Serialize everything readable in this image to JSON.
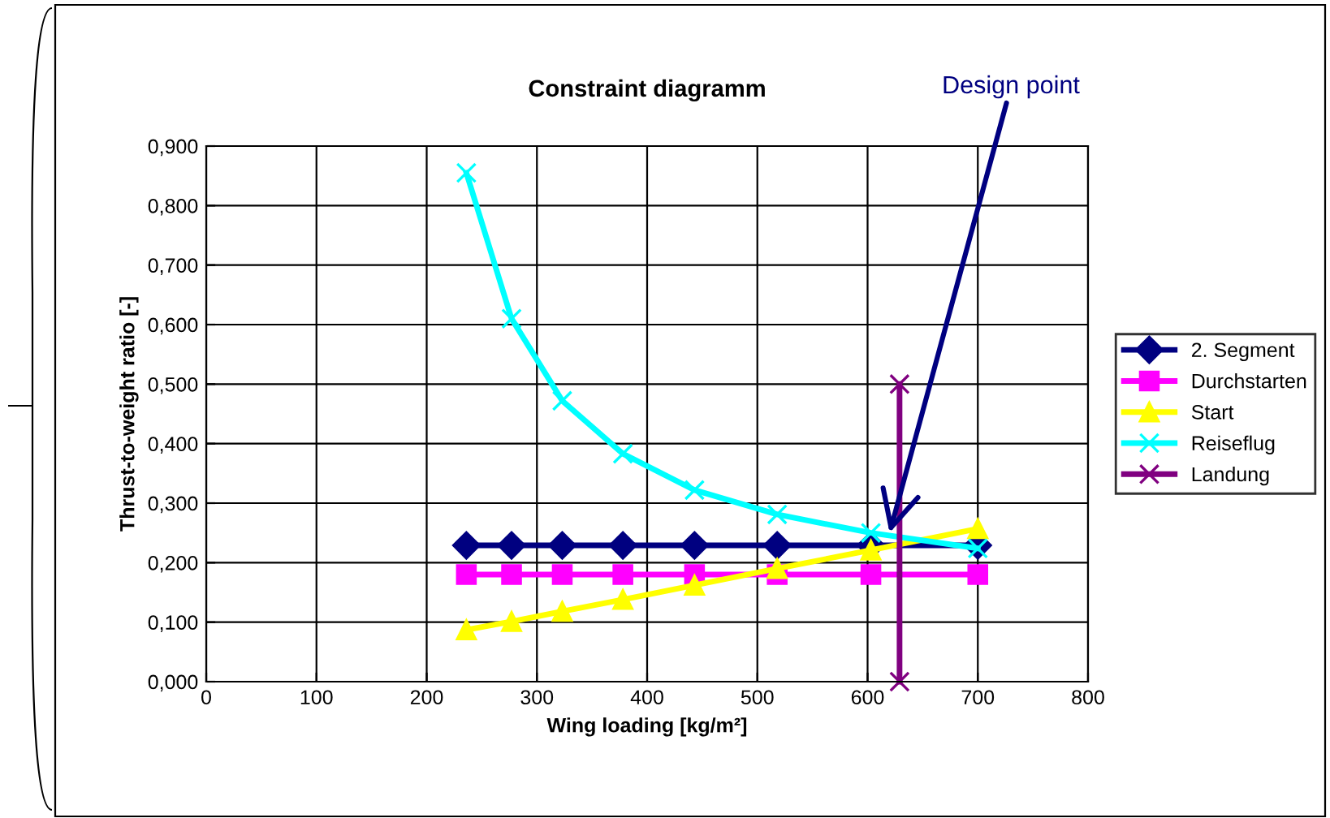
{
  "chart_data": {
    "type": "line",
    "title": "Constraint diagramm",
    "xlabel": "Wing loading [kg/m²]",
    "ylabel": "Thrust-to-weight ratio [-]",
    "x": [
      236,
      277,
      323,
      378,
      443,
      518,
      603,
      700
    ],
    "series": [
      {
        "name": "2. Segment",
        "color": "#000080",
        "marker": "diamond",
        "values": [
          0.229,
          0.229,
          0.229,
          0.229,
          0.229,
          0.229,
          0.229,
          0.229
        ]
      },
      {
        "name": "Durchstarten",
        "color": "#ff00ff",
        "marker": "square",
        "values": [
          0.18,
          0.18,
          0.18,
          0.18,
          0.18,
          0.18,
          0.18,
          0.18
        ]
      },
      {
        "name": "Start",
        "color": "#ffff00",
        "marker": "triangle",
        "values": [
          0.087,
          0.101,
          0.118,
          0.138,
          0.162,
          0.19,
          0.221,
          0.257
        ]
      },
      {
        "name": "Reiseflug",
        "color": "#00ffff",
        "marker": "cross",
        "values": [
          0.855,
          0.61,
          0.472,
          0.383,
          0.322,
          0.281,
          0.25,
          0.224
        ]
      },
      {
        "name": "Landung",
        "color": "#800080",
        "marker": "cross",
        "x": [
          629,
          629
        ],
        "values": [
          0,
          0.5
        ]
      }
    ],
    "xlim": [
      0,
      800
    ],
    "xticks": [
      0,
      100,
      200,
      300,
      400,
      500,
      600,
      700,
      800
    ],
    "ylim": [
      0,
      0.9
    ],
    "yticks": [
      {
        "value": 0,
        "label": "0,000"
      },
      {
        "value": 0.1,
        "label": "0,100"
      },
      {
        "value": 0.2,
        "label": "0,200"
      },
      {
        "value": 0.3,
        "label": "0,300"
      },
      {
        "value": 0.4,
        "label": "0,400"
      },
      {
        "value": 0.5,
        "label": "0,500"
      },
      {
        "value": 0.6,
        "label": "0,600"
      },
      {
        "value": 0.7,
        "label": "0,700"
      },
      {
        "value": 0.8,
        "label": "0,800"
      },
      {
        "value": 0.9,
        "label": "0,900"
      }
    ],
    "grid": true,
    "legend": "right",
    "line_style": "solid",
    "annotations": [
      {
        "text": "Design point",
        "x": 620,
        "y": 0.25
      }
    ]
  }
}
